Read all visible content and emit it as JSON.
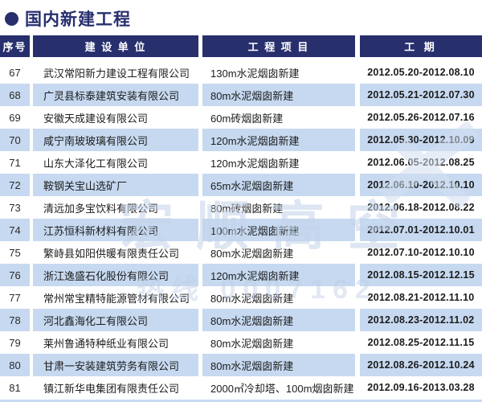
{
  "title": "国内新建工程",
  "watermark": {
    "line1": "宏顺高空",
    "line2": "热线 0007162"
  },
  "colors": {
    "navy": "#272f6d",
    "row_alt_blue": "#c6d9f0",
    "body_text": "#1c1c1c",
    "watermark_blue": "#c3d3e9"
  },
  "table": {
    "headers": [
      "序号",
      "建 设 单 位",
      "工 程 项 目",
      "工 期"
    ],
    "rows": [
      {
        "no": "67",
        "company": "武汉常阳新力建设工程有限公司",
        "project": "130m水泥烟囱新建",
        "period": "2012.05.20-2012.08.10"
      },
      {
        "no": "68",
        "company": "广灵县标泰建筑安装有限公司",
        "project": "80m水泥烟囱新建",
        "period": "2012.05.21-2012.07.30"
      },
      {
        "no": "69",
        "company": "安徽天成建设有限公司",
        "project": "60m砖烟囱新建",
        "period": "2012.05.26-2012.07.16"
      },
      {
        "no": "70",
        "company": "咸宁南玻玻璃有限公司",
        "project": "120m水泥烟囱新建",
        "period": "2012.05.30-2012.10.09"
      },
      {
        "no": "71",
        "company": "山东大泽化工有限公司",
        "project": "120m水泥烟囱新建",
        "period": "2012.06.05-2012.08.25"
      },
      {
        "no": "72",
        "company": "鞍钢关宝山选矿厂",
        "project": "65m水泥烟囱新建",
        "period": "2012.06.10-2012.10.10"
      },
      {
        "no": "73",
        "company": "清远加多宝饮料有限公司",
        "project": "80m砖烟囱新建",
        "period": "2012.06.18-2012.08.22"
      },
      {
        "no": "74",
        "company": "江苏恒科新材料有限公司",
        "project": "100m水泥烟囱新建",
        "period": "2012.07.01-2012.10.01"
      },
      {
        "no": "75",
        "company": "繁峙县如阳供暖有限责任公司",
        "project": "80m水泥烟囱新建",
        "period": "2012.07.10-2012.10.10"
      },
      {
        "no": "76",
        "company": "浙江逸盛石化股份有限公司",
        "project": "120m水泥烟囱新建",
        "period": "2012.08.15-2012.12.15"
      },
      {
        "no": "77",
        "company": "常州常宝精特能源管材有限公司",
        "project": "80m水泥烟囱新建",
        "period": "2012.08.21-2012.11.10"
      },
      {
        "no": "78",
        "company": "河北鑫海化工有限公司",
        "project": "80m水泥烟囱新建",
        "period": "2012.08.23-2012.11.02"
      },
      {
        "no": "79",
        "company": "莱州鲁通特种纸业有限公司",
        "project": "80m水泥烟囱新建",
        "period": "2012.08.25-2012.11.15"
      },
      {
        "no": "80",
        "company": "甘肃一安装建筑劳务有限公司",
        "project": "80m水泥烟囱新建",
        "period": "2012.08.26-2012.10.24"
      },
      {
        "no": "81",
        "company": "镇江新华电集团有限责任公司",
        "project": "2000㎡冷却塔、100m烟囱新建",
        "period": "2012.09.16-2013.03.28"
      }
    ]
  }
}
